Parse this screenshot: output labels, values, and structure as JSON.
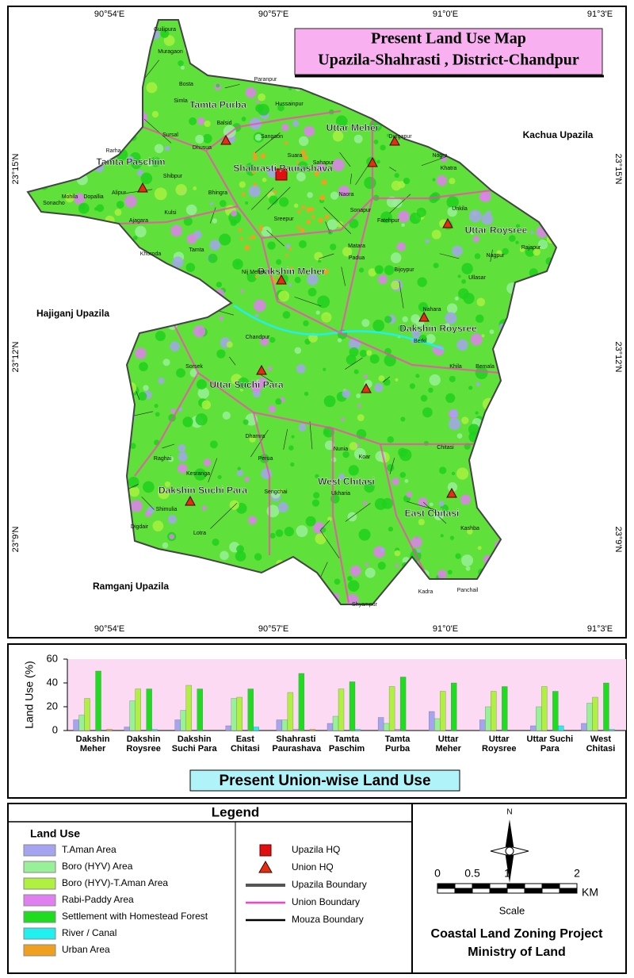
{
  "map": {
    "title_line1": "Present Land Use  Map",
    "title_line2": "Upazila-Shahrasti , District-Chandpur",
    "longitude_labels": [
      "90°54'E",
      "90°57'E",
      "91°0'E",
      "91°3'E"
    ],
    "latitude_labels": [
      "23°15'N",
      "23°12'N",
      "23°9'N"
    ],
    "unions": [
      "Tamta Purba",
      "Uttar Meher",
      "Tamta Paschim",
      "Shahrasti Paurashava",
      "Uttar Roysree",
      "Dakshin Meher",
      "Dakshin Roysree",
      "Uttar Suchi Para",
      "West Chitasi",
      "Dakshin Suchi Para",
      "East Chitasi"
    ],
    "neighbors": [
      "Kachua Upazila",
      "Hajiganj Upazila",
      "Ramganj Upazila"
    ],
    "mouzas": [
      "Guilipura",
      "Muragaon",
      "Paranpur",
      "Hussainpur",
      "Balsid",
      "Sangaon",
      "Rarha",
      "Shibpur",
      "Kulsi",
      "Ajagara",
      "Khoroda",
      "Sonacho",
      "Nij Meher",
      "Chandpur",
      "Nagpur",
      "Bosta",
      "Simla",
      "Sursal",
      "Dhusua",
      "Bhingra",
      "Sreepur",
      "Naora",
      "Sonapur",
      "Fatehpur",
      "Matara",
      "Padua",
      "Bijoypur",
      "Nahara",
      "Berki",
      "Khila",
      "Bemala",
      "Sorsek",
      "Dhamra",
      "Raghai",
      "Kesranga",
      "Shimulia",
      "Lotra",
      "Digdair",
      "Perua",
      "Sengchai",
      "Nunia",
      "Koar",
      "Ukharia",
      "Shyampur",
      "Kadra",
      "Panchail",
      "Kashba",
      "Chitasi",
      "Ullasar",
      "Rajapur",
      "Unkila",
      "Khatra",
      "Nogra",
      "Durgapur",
      "Suara",
      "Sahapur",
      "Alipur",
      "Tamta",
      "Mohila",
      "Dopallia"
    ]
  },
  "chart_data": {
    "type": "bar",
    "title": "Present Union-wise Land Use",
    "ylabel": "Land Use (%)",
    "categories": [
      "Dakshin Meher",
      "Dakshin Roysree",
      "Dakshin Suchi Para",
      "East Chitasi",
      "Shahrasti Paurashava",
      "Tamta Paschim",
      "Tamta Purba",
      "Uttar Meher",
      "Uttar Roysree",
      "Uttar Suchi Para",
      "West Chitasi"
    ],
    "series": [
      {
        "name": "T.Aman Area",
        "color": "#a4a4f0",
        "values": [
          9,
          3,
          9,
          4,
          9,
          6,
          11,
          16,
          9,
          4,
          6
        ]
      },
      {
        "name": "Boro (HYV) Area",
        "color": "#98f098",
        "values": [
          13,
          25,
          17,
          27,
          9,
          12,
          6,
          10,
          20,
          20,
          23
        ]
      },
      {
        "name": "Boro (HYV)-T.Aman Area",
        "color": "#b0f040",
        "values": [
          27,
          35,
          38,
          28,
          32,
          35,
          37,
          33,
          33,
          37,
          28
        ]
      },
      {
        "name": "Rabi-Paddy Area",
        "color": "#e080f0",
        "values": [
          0,
          0,
          0,
          0,
          1,
          0,
          1,
          0,
          0,
          0,
          0
        ]
      },
      {
        "name": "Settlement with Homestead Forest",
        "color": "#20dc20",
        "values": [
          50,
          35,
          35,
          35,
          48,
          41,
          45,
          40,
          37,
          33,
          40
        ]
      },
      {
        "name": "River / Canal",
        "color": "#20f0f0",
        "values": [
          0,
          1,
          0,
          3,
          0,
          1,
          0,
          0,
          0,
          4,
          1
        ]
      },
      {
        "name": "Urban Area",
        "color": "#f0a020",
        "values": [
          1,
          0,
          0,
          0,
          1,
          0,
          0,
          0,
          0,
          0,
          0
        ]
      }
    ],
    "ylim": [
      0,
      60
    ],
    "yticks": [
      0,
      20,
      40,
      60
    ],
    "grid": false
  },
  "legend": {
    "title": "Legend",
    "land_use_heading": "Land Use",
    "symbols": [
      "Upazila HQ",
      "Union HQ",
      "Upazila Boundary",
      "Union Boundary",
      "Mouza Boundary"
    ]
  },
  "scale": {
    "labels": [
      "0",
      "0.5",
      "1",
      "2"
    ],
    "unit": "KM",
    "caption": "Scale"
  },
  "north": "N",
  "credit": {
    "line1": "Coastal Land Zoning Project",
    "line2": "Ministry of Land"
  }
}
